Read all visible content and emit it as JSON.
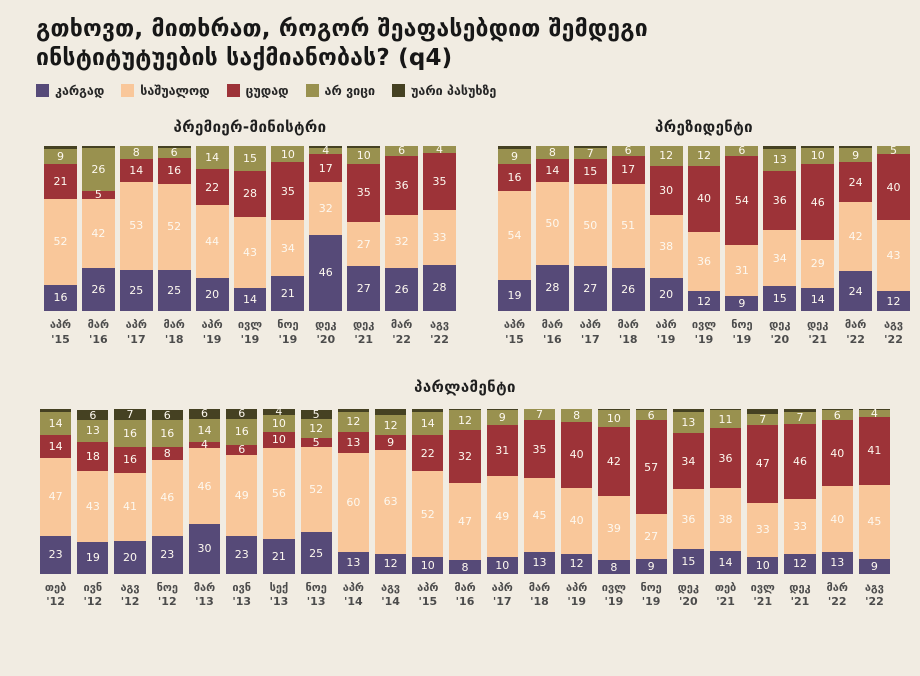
{
  "title": {
    "line1": "გთხოვთ, მითხრათ, როგორ შეაფასებდით  შემდეგი",
    "line2": "ინსტიტუტუების საქმიანობას? (q4)"
  },
  "colors": {
    "good": "#564a78",
    "average": "#f9c79a",
    "bad": "#9d3338",
    "dk": "#99914f",
    "refuse": "#454122",
    "background": "#f1ece2",
    "title_text": "#171717",
    "axis_text": "#4c4c4c",
    "bar_label_text": "#fdf8ef"
  },
  "legend": [
    {
      "key": "good",
      "label": "კარგად"
    },
    {
      "key": "average",
      "label": "საშუალოდ"
    },
    {
      "key": "bad",
      "label": "ცუდად"
    },
    {
      "key": "dk",
      "label": "არ ვიცი"
    },
    {
      "key": "refuse",
      "label": "უარი პასუხზე"
    }
  ],
  "chart_data": [
    {
      "type": "bar",
      "stacked": true,
      "title": "პრემიერ-მინისტრი",
      "ylim": [
        0,
        100
      ],
      "categories": [
        "აპრ '15",
        "მარ '16",
        "აპრ '17",
        "მარ '18",
        "აპრ '19",
        "ივლ '19",
        "ნოე '19",
        "დეკ '20",
        "დეკ '21",
        "მარ '22",
        "აგვ '22"
      ],
      "series": [
        {
          "key": "good",
          "name": "კარგად",
          "values": [
            16,
            26,
            25,
            25,
            20,
            14,
            21,
            46,
            27,
            26,
            28
          ]
        },
        {
          "key": "average",
          "name": "საშუალოდ",
          "values": [
            52,
            42,
            53,
            52,
            44,
            43,
            34,
            32,
            27,
            32,
            33
          ]
        },
        {
          "key": "bad",
          "name": "ცუდად",
          "values": [
            21,
            5,
            14,
            16,
            22,
            28,
            35,
            17,
            35,
            36,
            35
          ]
        },
        {
          "key": "dk",
          "name": "არ ვიცი",
          "values": [
            9,
            26,
            8,
            6,
            14,
            15,
            10,
            4,
            10,
            6,
            4
          ]
        },
        {
          "key": "refuse",
          "name": "უარი პასუხზე",
          "values": [
            null,
            null,
            null,
            null,
            null,
            null,
            null,
            null,
            null,
            null,
            null
          ]
        }
      ]
    },
    {
      "type": "bar",
      "stacked": true,
      "title": "პრეზიდენტი",
      "ylim": [
        0,
        100
      ],
      "categories": [
        "აპრ '15",
        "მარ '16",
        "აპრ '17",
        "მარ '18",
        "აპრ '19",
        "ივლ '19",
        "ნოე '19",
        "დეკ '20",
        "დეკ '21",
        "მარ '22",
        "აგვ '22"
      ],
      "series": [
        {
          "key": "good",
          "name": "კარგად",
          "values": [
            19,
            28,
            27,
            26,
            20,
            12,
            9,
            15,
            14,
            24,
            12
          ]
        },
        {
          "key": "average",
          "name": "საშუალოდ",
          "values": [
            54,
            50,
            50,
            51,
            38,
            36,
            31,
            34,
            29,
            42,
            43
          ]
        },
        {
          "key": "bad",
          "name": "ცუდად",
          "values": [
            16,
            14,
            15,
            17,
            30,
            40,
            54,
            36,
            46,
            24,
            40
          ]
        },
        {
          "key": "dk",
          "name": "არ ვიცი",
          "values": [
            9,
            8,
            7,
            6,
            12,
            12,
            6,
            13,
            10,
            9,
            5
          ]
        },
        {
          "key": "refuse",
          "name": "უარი პასუხზე",
          "values": [
            null,
            null,
            null,
            null,
            null,
            null,
            null,
            null,
            null,
            null,
            null
          ]
        }
      ]
    },
    {
      "type": "bar",
      "stacked": true,
      "title": "პარლამენტი",
      "ylim": [
        0,
        100
      ],
      "categories": [
        "თებ '12",
        "ივნ '12",
        "აგვ '12",
        "ნოე '12",
        "მარ '13",
        "ივნ '13",
        "სექ '13",
        "ნოე '13",
        "აპრ '14",
        "აგვ '14",
        "აპრ '15",
        "მარ '16",
        "აპრ '17",
        "მარ '18",
        "აპრ '19",
        "ივლ '19",
        "ნოე '19",
        "დეკ '20",
        "თებ '21",
        "ივლ '21",
        "დეკ '21",
        "მარ '22",
        "აგვ '22"
      ],
      "series": [
        {
          "key": "good",
          "name": "კარგად",
          "values": [
            23,
            19,
            20,
            23,
            30,
            23,
            21,
            25,
            13,
            12,
            10,
            8,
            10,
            13,
            12,
            8,
            9,
            15,
            14,
            10,
            12,
            13,
            9
          ]
        },
        {
          "key": "average",
          "name": "საშუალოდ",
          "values": [
            47,
            43,
            41,
            46,
            46,
            49,
            56,
            52,
            60,
            63,
            52,
            47,
            49,
            45,
            40,
            39,
            27,
            36,
            38,
            33,
            33,
            40,
            45
          ]
        },
        {
          "key": "bad",
          "name": "ცუდად",
          "values": [
            14,
            18,
            16,
            8,
            4,
            6,
            10,
            5,
            13,
            9,
            22,
            32,
            31,
            35,
            40,
            42,
            57,
            34,
            36,
            47,
            46,
            40,
            41
          ]
        },
        {
          "key": "dk",
          "name": "არ ვიცი",
          "values": [
            14,
            13,
            16,
            16,
            14,
            16,
            10,
            12,
            12,
            12,
            14,
            12,
            9,
            7,
            8,
            10,
            6,
            13,
            11,
            7,
            7,
            6,
            4
          ]
        },
        {
          "key": "refuse",
          "name": "უარი პასუხზე",
          "values": [
            null,
            6,
            7,
            6,
            6,
            6,
            4,
            5,
            null,
            null,
            null,
            null,
            null,
            null,
            null,
            null,
            null,
            null,
            null,
            null,
            null,
            null,
            null
          ]
        }
      ]
    }
  ]
}
